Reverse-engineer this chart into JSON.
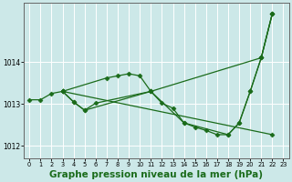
{
  "bg_color": "#cce8e8",
  "grid_color": "#ffffff",
  "line_color": "#1a6b1a",
  "marker_color": "#1a6b1a",
  "xlabel": "Graphe pression niveau de la mer (hPa)",
  "xlabel_fontsize": 7.5,
  "ylabel_ticks": [
    1012,
    1013,
    1014
  ],
  "xlim": [
    -0.5,
    23.5
  ],
  "ylim": [
    1011.7,
    1015.4
  ],
  "xticks": [
    0,
    1,
    2,
    3,
    4,
    5,
    6,
    7,
    8,
    9,
    10,
    11,
    12,
    13,
    14,
    15,
    16,
    17,
    18,
    19,
    20,
    21,
    22,
    23
  ],
  "series": [
    {
      "name": "line1_start",
      "x": [
        0,
        1,
        2,
        3
      ],
      "y": [
        1013.1,
        1013.1,
        1013.25,
        1013.3
      ]
    },
    {
      "name": "line2_upper_arc",
      "x": [
        3,
        7,
        8,
        9,
        10,
        11,
        21,
        22
      ],
      "y": [
        1013.3,
        1013.62,
        1013.67,
        1013.72,
        1013.67,
        1013.3,
        1014.1,
        1015.15
      ]
    },
    {
      "name": "line3_lower_path",
      "x": [
        3,
        4,
        5,
        6,
        11,
        12,
        13,
        14,
        15,
        16,
        17,
        18,
        19,
        20,
        21,
        22
      ],
      "y": [
        1013.3,
        1013.05,
        1012.85,
        1013.02,
        1013.3,
        1013.02,
        1012.9,
        1012.55,
        1012.45,
        1012.37,
        1012.27,
        1012.27,
        1012.55,
        1013.3,
        1014.1,
        1015.15
      ]
    },
    {
      "name": "line4_diagonal",
      "x": [
        3,
        22
      ],
      "y": [
        1013.3,
        1012.27
      ]
    },
    {
      "name": "line5_mid",
      "x": [
        3,
        4,
        5,
        11,
        14,
        18,
        19,
        20,
        21,
        22
      ],
      "y": [
        1013.3,
        1013.05,
        1012.85,
        1013.3,
        1012.55,
        1012.27,
        1012.55,
        1013.3,
        1014.1,
        1015.15
      ]
    }
  ]
}
